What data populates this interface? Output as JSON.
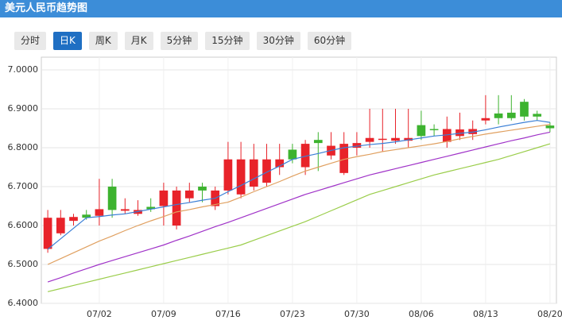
{
  "header": {
    "title": "美元人民币趋势图"
  },
  "tabs": [
    "分时",
    "日K",
    "周K",
    "月K",
    "5分钟",
    "15分钟",
    "30分钟",
    "60分钟"
  ],
  "active_tab": 1,
  "chart_data": {
    "type": "candlestick",
    "categories": [
      null,
      null,
      null,
      null,
      "07/02",
      null,
      null,
      null,
      null,
      "07/09",
      null,
      null,
      null,
      null,
      "07/16",
      null,
      null,
      null,
      null,
      "07/23",
      null,
      null,
      null,
      null,
      "07/30",
      null,
      null,
      null,
      null,
      "08/06",
      null,
      null,
      null,
      null,
      "08/13",
      null,
      null,
      null,
      null,
      "08/20"
    ],
    "open": [
      6.54,
      6.58,
      6.612,
      6.628,
      6.625,
      6.7,
      6.638,
      6.63,
      6.648,
      6.65,
      6.6,
      6.67,
      6.7,
      6.65,
      6.69,
      6.68,
      6.7,
      6.71,
      6.75,
      6.795,
      6.75,
      6.82,
      6.78,
      6.735,
      6.8,
      6.815,
      6.82,
      6.818,
      6.818,
      6.858,
      6.848,
      6.815,
      6.83,
      6.835,
      6.87,
      6.888,
      6.89,
      6.918,
      6.887,
      6.857
    ],
    "high": [
      6.64,
      6.64,
      6.63,
      6.64,
      6.72,
      6.72,
      6.67,
      6.665,
      6.67,
      6.71,
      6.7,
      6.71,
      6.71,
      6.7,
      6.815,
      6.815,
      6.81,
      6.81,
      6.81,
      6.81,
      6.82,
      6.84,
      6.84,
      6.84,
      6.84,
      6.9,
      6.9,
      6.9,
      6.9,
      6.895,
      6.86,
      6.88,
      6.89,
      6.87,
      6.935,
      6.935,
      6.935,
      6.925,
      6.895,
      6.865
    ],
    "low": [
      6.53,
      6.575,
      6.6,
      6.615,
      6.6,
      6.62,
      6.63,
      6.625,
      6.635,
      6.6,
      6.59,
      6.66,
      6.66,
      6.64,
      6.68,
      6.67,
      6.69,
      6.7,
      6.73,
      6.76,
      6.73,
      6.74,
      6.77,
      6.73,
      6.78,
      6.8,
      6.79,
      6.81,
      6.8,
      6.82,
      6.83,
      6.8,
      6.82,
      6.82,
      6.86,
      6.86,
      6.87,
      6.87,
      6.87,
      6.84
    ],
    "close": [
      6.62,
      6.62,
      6.622,
      6.62,
      6.642,
      6.64,
      6.642,
      6.64,
      6.642,
      6.69,
      6.69,
      6.69,
      6.69,
      6.69,
      6.77,
      6.77,
      6.77,
      6.77,
      6.77,
      6.77,
      6.81,
      6.812,
      6.805,
      6.81,
      6.812,
      6.825,
      6.823,
      6.825,
      6.825,
      6.83,
      6.845,
      6.848,
      6.847,
      6.848,
      6.876,
      6.876,
      6.876,
      6.88,
      6.88,
      6.85
    ],
    "up_color": "#e8232a",
    "down_color": "#3db32f",
    "series": [
      {
        "color": "#3a7fd6",
        "values": [
          6.539,
          6.566,
          6.593,
          6.62,
          6.623,
          6.627,
          6.63,
          6.636,
          6.642,
          6.648,
          6.654,
          6.659,
          6.665,
          6.67,
          6.687,
          6.703,
          6.72,
          6.737,
          6.753,
          6.77,
          6.778,
          6.785,
          6.793,
          6.8,
          6.804,
          6.808,
          6.811,
          6.815,
          6.82,
          6.825,
          6.83,
          6.833,
          6.837,
          6.84,
          6.846,
          6.853,
          6.859,
          6.865,
          6.87,
          6.865
        ]
      },
      {
        "color": "#e0a060",
        "values": [
          6.5,
          6.515,
          6.53,
          6.545,
          6.56,
          6.573,
          6.587,
          6.6,
          6.612,
          6.623,
          6.635,
          6.641,
          6.648,
          6.654,
          6.66,
          6.673,
          6.687,
          6.7,
          6.713,
          6.727,
          6.74,
          6.75,
          6.76,
          6.77,
          6.777,
          6.783,
          6.79,
          6.795,
          6.8,
          6.805,
          6.81,
          6.816,
          6.823,
          6.829,
          6.835,
          6.84,
          6.845,
          6.85,
          6.855,
          6.86
        ]
      },
      {
        "color": "#a033c8",
        "values": [
          6.455,
          6.466,
          6.478,
          6.489,
          6.5,
          6.51,
          6.52,
          6.53,
          6.54,
          6.55,
          6.562,
          6.573,
          6.585,
          6.597,
          6.608,
          6.62,
          6.632,
          6.644,
          6.656,
          6.668,
          6.68,
          6.69,
          6.7,
          6.71,
          6.72,
          6.73,
          6.738,
          6.746,
          6.754,
          6.762,
          6.77,
          6.778,
          6.786,
          6.794,
          6.802,
          6.81,
          6.818,
          6.825,
          6.833,
          6.84
        ]
      },
      {
        "color": "#9acd4a",
        "values": [
          6.43,
          6.438,
          6.446,
          6.454,
          6.462,
          6.47,
          6.478,
          6.486,
          6.494,
          6.502,
          6.51,
          6.518,
          6.526,
          6.534,
          6.542,
          6.55,
          6.562,
          6.574,
          6.586,
          6.598,
          6.61,
          6.624,
          6.638,
          6.652,
          6.666,
          6.68,
          6.69,
          6.7,
          6.71,
          6.72,
          6.73,
          6.738,
          6.746,
          6.754,
          6.762,
          6.77,
          6.78,
          6.79,
          6.8,
          6.81
        ]
      }
    ],
    "ylim": [
      6.4,
      7.0
    ],
    "yticks": [
      {
        "value": 6.4,
        "label": "6.4000"
      },
      {
        "value": 6.5,
        "label": "6.5000"
      },
      {
        "value": 6.6,
        "label": "6.6000"
      },
      {
        "value": 6.7,
        "label": "6.7000"
      },
      {
        "value": 6.8,
        "label": "6.8000"
      },
      {
        "value": 6.9,
        "label": "6.9000"
      },
      {
        "value": 7.0,
        "label": "7.0000"
      }
    ],
    "grid": true
  }
}
